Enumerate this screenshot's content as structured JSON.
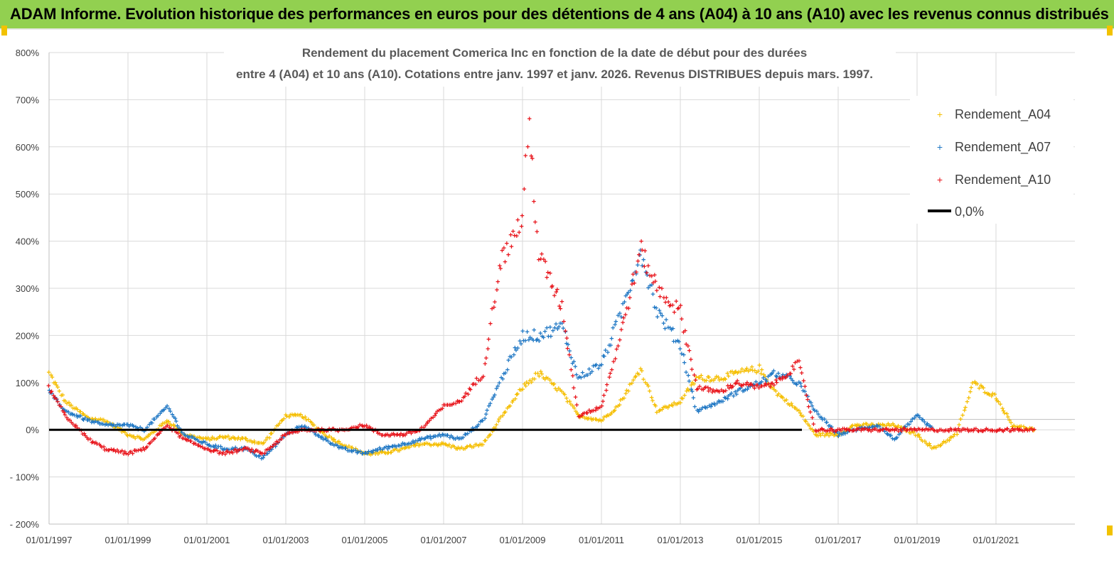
{
  "banner": {
    "title": "ADAM Informe. Evolution historique des performances en euros pour des détentions de 4 ans (A04) à 10 ans (A10) avec les revenus connus distribués"
  },
  "colors": {
    "banner_bg": "#92d050",
    "a04": "#f5be00",
    "a07": "#1f77c4",
    "a10": "#e8141b",
    "zero_line": "#000000",
    "grid": "#d9d9d9"
  },
  "chart_data": {
    "type": "scatter",
    "title_line1": "Rendement du placement Comerica Inc en fonction de la date de début pour des durées",
    "title_line2": "entre 4 (A04) et 10 ans (A10).  Cotations entre janv. 1997 et janv. 2026. Revenus DISTRIBUES depuis mars. 1997.",
    "ylim": [
      -200,
      800
    ],
    "y_ticks": [
      -200,
      -100,
      0,
      100,
      200,
      300,
      400,
      500,
      600,
      700,
      800
    ],
    "y_tick_labels": [
      "- 200%",
      "- 100%",
      "0%",
      "100%",
      "200%",
      "300%",
      "400%",
      "500%",
      "600%",
      "700%",
      "800%"
    ],
    "x_range": [
      "1997-01-01",
      "2022-01-01"
    ],
    "x_ticks": [
      "1997-01-01",
      "1999-01-01",
      "2001-01-01",
      "2003-01-01",
      "2005-01-01",
      "2007-01-01",
      "2009-01-01",
      "2011-01-01",
      "2013-01-01",
      "2015-01-01",
      "2017-01-01",
      "2019-01-01",
      "2021-01-01"
    ],
    "x_tick_labels": [
      "01/01/1997",
      "01/01/1999",
      "01/01/2001",
      "01/01/2003",
      "01/01/2005",
      "01/01/2007",
      "01/01/2009",
      "01/01/2011",
      "01/01/2013",
      "01/01/2015",
      "01/01/2017",
      "01/01/2019",
      "01/01/2021"
    ],
    "grid": true,
    "legend_position": "top-right",
    "series": [
      {
        "name": "Rendement_A04",
        "x": [
          "1997-01",
          "1997-06",
          "1998-01",
          "1998-06",
          "1999-01",
          "1999-06",
          "2000-01",
          "2000-06",
          "2001-01",
          "2001-06",
          "2002-01",
          "2002-06",
          "2003-01",
          "2003-06",
          "2004-01",
          "2004-06",
          "2005-01",
          "2005-06",
          "2006-01",
          "2006-06",
          "2007-01",
          "2007-06",
          "2008-01",
          "2008-06",
          "2009-01",
          "2009-06",
          "2010-01",
          "2010-06",
          "2011-01",
          "2011-06",
          "2012-01",
          "2012-06",
          "2013-01",
          "2013-06",
          "2014-01",
          "2014-06",
          "2015-01",
          "2015-06",
          "2016-01",
          "2016-06",
          "2017-01",
          "2017-06",
          "2018-01",
          "2018-06",
          "2019-01",
          "2019-06",
          "2020-01",
          "2020-06",
          "2021-01",
          "2021-06",
          "2022-01"
        ],
        "y": [
          120,
          60,
          25,
          20,
          -10,
          -20,
          20,
          -10,
          -20,
          -15,
          -20,
          -30,
          30,
          30,
          -10,
          -30,
          -50,
          -50,
          -40,
          -30,
          -30,
          -40,
          -30,
          20,
          90,
          120,
          80,
          30,
          20,
          50,
          130,
          40,
          60,
          110,
          110,
          120,
          130,
          80,
          40,
          -10,
          -10,
          10,
          10,
          10,
          -10,
          -40,
          -10,
          100,
          70,
          10,
          0
        ]
      },
      {
        "name": "Rendement_A07",
        "x": [
          "1997-01",
          "1997-06",
          "1998-01",
          "1998-06",
          "1999-01",
          "1999-06",
          "2000-01",
          "2000-06",
          "2001-01",
          "2001-06",
          "2002-01",
          "2002-06",
          "2003-01",
          "2003-06",
          "2004-01",
          "2004-06",
          "2005-01",
          "2005-06",
          "2006-01",
          "2006-06",
          "2007-01",
          "2007-06",
          "2008-01",
          "2008-06",
          "2009-01",
          "2009-06",
          "2010-01",
          "2010-06",
          "2011-01",
          "2011-06",
          "2012-01",
          "2012-06",
          "2013-01",
          "2013-06",
          "2014-01",
          "2014-06",
          "2015-01",
          "2015-06",
          "2016-01",
          "2016-06",
          "2017-01",
          "2017-06",
          "2018-01",
          "2018-06",
          "2019-01",
          "2019-06"
        ],
        "y": [
          80,
          40,
          20,
          10,
          10,
          0,
          50,
          -10,
          -30,
          -40,
          -40,
          -60,
          -10,
          10,
          -20,
          -40,
          -50,
          -40,
          -30,
          -20,
          -10,
          -20,
          20,
          100,
          200,
          200,
          220,
          110,
          140,
          230,
          380,
          250,
          180,
          40,
          60,
          80,
          100,
          120,
          100,
          40,
          -10,
          0,
          10,
          -20,
          30,
          0
        ]
      },
      {
        "name": "Rendement_A10",
        "x": [
          "1997-01",
          "1997-06",
          "1998-01",
          "1998-06",
          "1999-01",
          "1999-06",
          "2000-01",
          "2000-06",
          "2001-01",
          "2001-06",
          "2002-01",
          "2002-06",
          "2003-01",
          "2003-06",
          "2004-01",
          "2004-06",
          "2005-01",
          "2005-06",
          "2006-01",
          "2006-06",
          "2007-01",
          "2007-06",
          "2008-01",
          "2008-06",
          "2009-01",
          "2009-03",
          "2009-06",
          "2010-01",
          "2010-06",
          "2011-01",
          "2011-06",
          "2012-01",
          "2012-06",
          "2013-01",
          "2013-06",
          "2014-01",
          "2014-06",
          "2015-01",
          "2015-06",
          "2016-01",
          "2016-06",
          "2017-01",
          "2017-06",
          "2018-01",
          "2018-06",
          "2019-01",
          "2019-06",
          "2020-01",
          "2020-06",
          "2021-01",
          "2021-06",
          "2022-01"
        ],
        "y": [
          90,
          30,
          -20,
          -40,
          -50,
          -40,
          10,
          -20,
          -40,
          -50,
          -40,
          -50,
          -10,
          0,
          0,
          0,
          10,
          -10,
          -10,
          0,
          50,
          60,
          120,
          350,
          450,
          650,
          370,
          260,
          30,
          50,
          180,
          380,
          300,
          250,
          90,
          80,
          100,
          90,
          100,
          140,
          0,
          0,
          0,
          0,
          0,
          0,
          0,
          0,
          0,
          0,
          0,
          0
        ]
      }
    ],
    "reference_line": {
      "name": "0,0%",
      "value": 0
    }
  }
}
